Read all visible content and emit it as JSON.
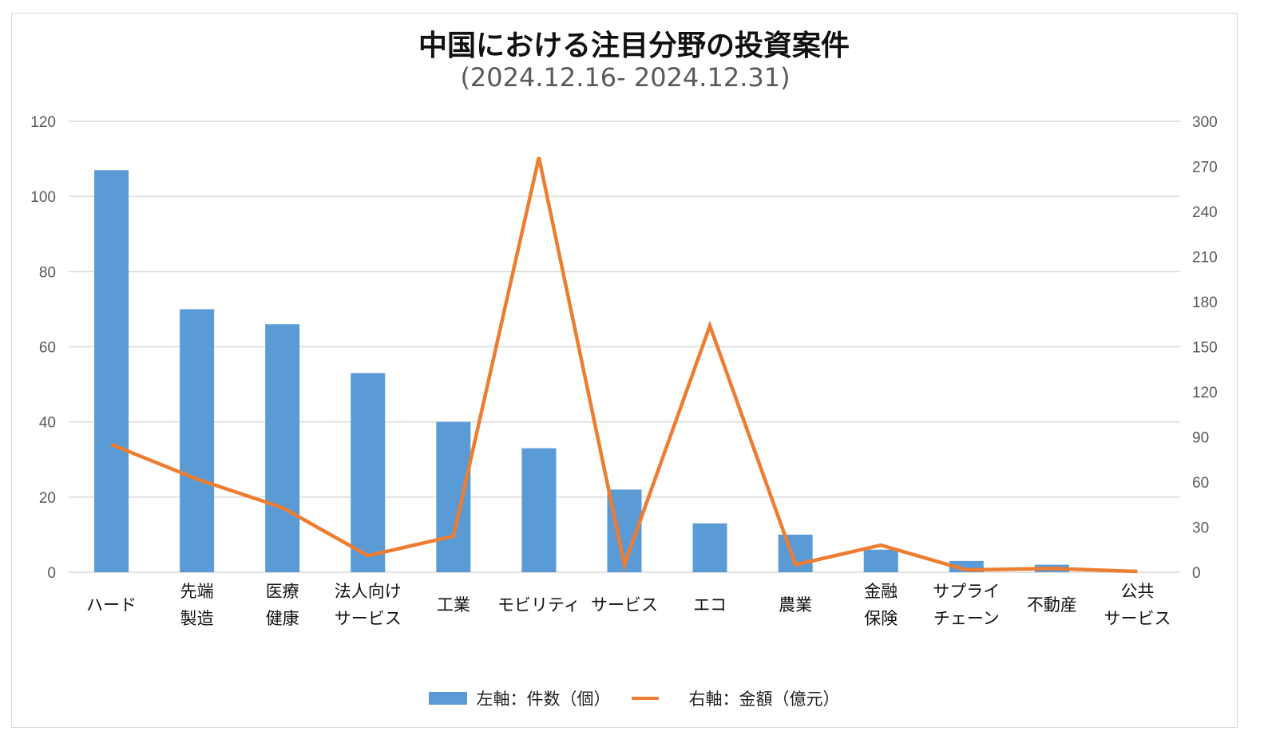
{
  "chart_data": {
    "type": "bar+line",
    "title": "中国における注目分野の投資案件",
    "subtitle": "(2024.12.16- 2024.12.31)",
    "categories": [
      [
        "ハード"
      ],
      [
        "先端",
        "製造"
      ],
      [
        "医療",
        "健康"
      ],
      [
        "法人向け",
        "サービス"
      ],
      [
        "工業"
      ],
      [
        "モビリティ"
      ],
      [
        "サービス"
      ],
      [
        "エコ"
      ],
      [
        "農業"
      ],
      [
        "金融",
        "保険"
      ],
      [
        "サプライ",
        "チェーン"
      ],
      [
        "不動産"
      ],
      [
        "公共",
        "サービス"
      ]
    ],
    "series": [
      {
        "name": "左軸：件数（個）",
        "type": "bar",
        "axis": "left",
        "color": "#5b9bd5",
        "values": [
          107,
          70,
          66,
          53,
          40,
          33,
          22,
          13,
          10,
          6,
          3,
          2,
          0
        ]
      },
      {
        "name": "右軸：金額（億元）",
        "type": "line",
        "axis": "right",
        "color": "#ed7d31",
        "values": [
          85,
          62,
          43,
          11,
          24,
          276,
          5,
          164,
          5,
          18,
          1.5,
          2.5,
          0.5
        ]
      }
    ],
    "left_axis": {
      "min": 0,
      "max": 120,
      "ticks": [
        "0",
        "20",
        "40",
        "60",
        "80",
        "100",
        "120"
      ]
    },
    "right_axis": {
      "min": 0,
      "max": 300,
      "ticks": [
        "0",
        "30",
        "60",
        "90",
        "120",
        "150",
        "180",
        "210",
        "240",
        "270",
        "300"
      ]
    },
    "grid": true,
    "legend_position": "bottom"
  }
}
